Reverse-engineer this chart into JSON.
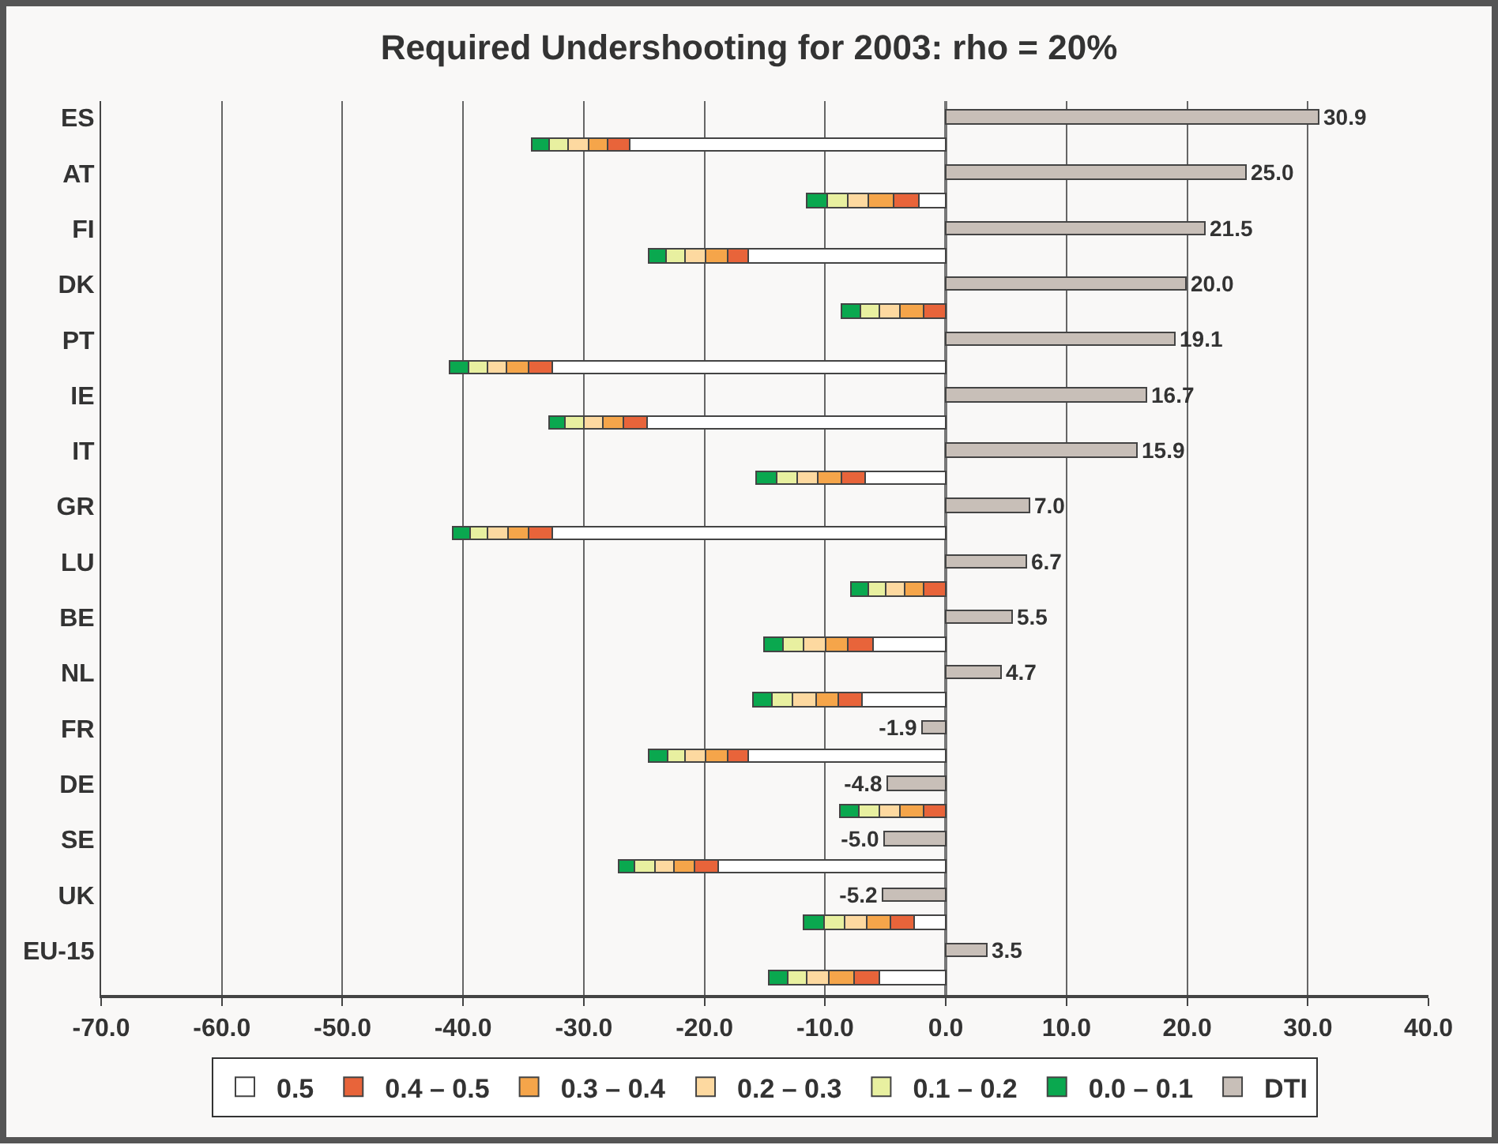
{
  "chart_data": {
    "type": "bar",
    "orientation": "horizontal",
    "title": "Required Undershooting for 2003: rho = 20%",
    "categories": [
      "ES",
      "AT",
      "FI",
      "DK",
      "PT",
      "IE",
      "IT",
      "GR",
      "LU",
      "BE",
      "NL",
      "FR",
      "DE",
      "SE",
      "UK",
      "EU-15"
    ],
    "series": [
      {
        "name": "0.5",
        "color": "#ffffff",
        "values": [
          -26.1,
          -2.2,
          -16.3,
          null,
          -32.6,
          -24.7,
          -6.6,
          -32.6,
          null,
          -5.9,
          -6.9,
          -16.3,
          null,
          -18.8,
          -2.6,
          -5.5
        ],
        "base": [
          0,
          0,
          0,
          null,
          0,
          0,
          0,
          0,
          null,
          0,
          0,
          0,
          null,
          0,
          0,
          0
        ]
      },
      {
        "name": "0.4 – 0.5",
        "color": "#e8643a",
        "values": [
          -1.8,
          -2.1,
          -1.7,
          -1.8,
          -1.9,
          -1.9,
          -2.0,
          -1.9,
          -1.8,
          -2.1,
          -2.0,
          -1.7,
          -1.8,
          -1.9,
          -1.9,
          -2.1
        ],
        "base": [
          -26.1,
          -2.2,
          -16.3,
          0,
          -32.6,
          -24.7,
          -6.6,
          -32.6,
          0,
          -5.9,
          -6.9,
          -16.3,
          0,
          -18.8,
          -2.6,
          -5.5
        ]
      },
      {
        "name": "0.3 – 0.4",
        "color": "#f5a54a",
        "values": [
          -1.7,
          -2.0,
          -1.9,
          -1.9,
          -1.8,
          -1.7,
          -1.9,
          -1.7,
          -1.6,
          -1.9,
          -1.8,
          -1.9,
          -1.9,
          -1.7,
          -2.0,
          -2.0
        ],
        "base": [
          -27.9,
          -4.3,
          -18.0,
          -1.8,
          -34.5,
          -26.6,
          -8.6,
          -34.5,
          -1.8,
          -8.0,
          -8.9,
          -18.0,
          -1.8,
          -20.7,
          -4.5,
          -7.6
        ]
      },
      {
        "name": "0.2 – 0.3",
        "color": "#fdd9a0",
        "values": [
          -1.7,
          -1.7,
          -1.7,
          -1.7,
          -1.6,
          -1.6,
          -1.8,
          -1.7,
          -1.5,
          -1.8,
          -1.9,
          -1.6,
          -1.7,
          -1.7,
          -1.8,
          -1.8
        ],
        "base": [
          -29.6,
          -6.3,
          -19.9,
          -3.7,
          -36.3,
          -28.3,
          -10.5,
          -36.2,
          -3.4,
          -9.9,
          -10.7,
          -19.9,
          -3.7,
          -22.4,
          -6.5,
          -9.6
        ]
      },
      {
        "name": "0.1 – 0.2",
        "color": "#e8f0a0",
        "values": [
          -1.5,
          -1.7,
          -1.5,
          -1.6,
          -1.6,
          -1.6,
          -1.7,
          -1.5,
          -1.5,
          -1.7,
          -1.7,
          -1.5,
          -1.7,
          -1.6,
          -1.7,
          -1.6
        ],
        "base": [
          -31.3,
          -8.0,
          -21.6,
          -5.4,
          -37.9,
          -29.9,
          -12.3,
          -37.9,
          -4.9,
          -11.7,
          -12.6,
          -21.5,
          -5.4,
          -24.1,
          -8.3,
          -11.4
        ]
      },
      {
        "name": "0.0 – 0.1",
        "color": "#0aa84f",
        "values": [
          -1.5,
          -1.7,
          -1.4,
          -1.6,
          -1.6,
          -1.3,
          -1.7,
          -1.4,
          -1.4,
          -1.6,
          -1.6,
          -1.5,
          -1.6,
          -1.3,
          -1.7,
          -1.6
        ],
        "base": [
          -32.8,
          -9.7,
          -23.1,
          -7.0,
          -39.5,
          -31.5,
          -14.0,
          -39.4,
          -6.4,
          -13.4,
          -14.3,
          -23.0,
          -7.1,
          -25.7,
          -10.0,
          -13.0
        ]
      },
      {
        "name": "DTI",
        "color": "#c8bfb8",
        "values": [
          30.9,
          25.0,
          21.5,
          20.0,
          19.1,
          16.7,
          15.9,
          7.0,
          6.7,
          5.5,
          4.7,
          -1.9,
          -4.8,
          -5.0,
          -5.2,
          3.5
        ],
        "value_labels": [
          "30.9",
          "25.0",
          "21.5",
          "20.0",
          "19.1",
          "16.7",
          "15.9",
          "7.0",
          "6.7",
          "5.5",
          "4.7",
          "-1.9",
          "-4.8",
          "-5.0",
          "-5.2",
          "3.5"
        ]
      }
    ],
    "xlim": [
      -70,
      40
    ],
    "xticks": [
      {
        "value": -70,
        "label": "-70.0"
      },
      {
        "value": -60,
        "label": "-60.0"
      },
      {
        "value": -50,
        "label": "-50.0"
      },
      {
        "value": -40,
        "label": "-40.0"
      },
      {
        "value": -30,
        "label": "-30.0"
      },
      {
        "value": -20,
        "label": "-20.0"
      },
      {
        "value": -10,
        "label": "-10.0"
      },
      {
        "value": 0,
        "label": "0.0"
      },
      {
        "value": 10,
        "label": "10.0"
      },
      {
        "value": 20,
        "label": "20.0"
      },
      {
        "value": 30,
        "label": "30.0"
      },
      {
        "value": 40,
        "label": "40.0"
      }
    ],
    "grid": "x",
    "legend": "bottom"
  }
}
